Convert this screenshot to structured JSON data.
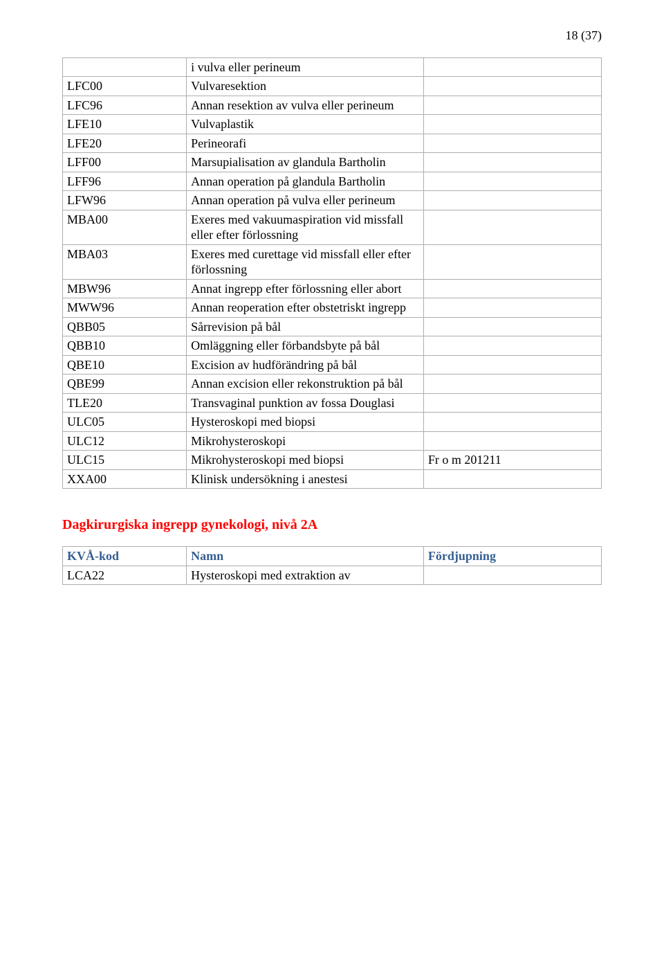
{
  "page_number_label": "18 (37)",
  "main_table": {
    "col_widths_pct": [
      23,
      44,
      33
    ],
    "border_color": "#adadad",
    "cell_padding": "2px 6px",
    "font_family": "Times New Roman",
    "font_size_pt": 14,
    "rows": [
      {
        "code": "",
        "name": "i vulva eller perineum",
        "note": ""
      },
      {
        "code": "LFC00",
        "name": "Vulvaresektion",
        "note": ""
      },
      {
        "code": "LFC96",
        "name": "Annan resektion av vulva eller perineum",
        "note": ""
      },
      {
        "code": "LFE10",
        "name": "Vulvaplastik",
        "note": ""
      },
      {
        "code": "LFE20",
        "name": "Perineorafi",
        "note": ""
      },
      {
        "code": "LFF00",
        "name": "Marsupialisation av glandula Bartholin",
        "note": ""
      },
      {
        "code": "LFF96",
        "name": "Annan operation på glandula Bartholin",
        "note": ""
      },
      {
        "code": "LFW96",
        "name": "Annan operation på vulva eller perineum",
        "note": ""
      },
      {
        "code": "MBA00",
        "name": "Exeres med vakuumaspiration vid missfall eller efter förlossning",
        "note": ""
      },
      {
        "code": "MBA03",
        "name": "Exeres med curettage vid missfall eller efter förlossning",
        "note": ""
      },
      {
        "code": "MBW96",
        "name": "Annat ingrepp efter förlossning eller abort",
        "note": ""
      },
      {
        "code": "MWW96",
        "name": "Annan reoperation efter obstetriskt ingrepp",
        "note": ""
      },
      {
        "code": "QBB05",
        "name": "Sårrevision på bål",
        "note": ""
      },
      {
        "code": "QBB10",
        "name": "Omläggning eller förbandsbyte på bål",
        "note": ""
      },
      {
        "code": "QBE10",
        "name": "Excision av hudförändring på bål",
        "note": ""
      },
      {
        "code": "QBE99",
        "name": "Annan excision eller rekonstruktion på bål",
        "note": ""
      },
      {
        "code": "TLE20",
        "name": "Transvaginal punktion av fossa Douglasi",
        "note": ""
      },
      {
        "code": "ULC05",
        "name": "Hysteroskopi med biopsi",
        "note": ""
      },
      {
        "code": "ULC12",
        "name": "Mikrohysteroskopi",
        "note": ""
      },
      {
        "code": "ULC15",
        "name": "Mikrohysteroskopi med biopsi",
        "note": "Fr o m 201211"
      },
      {
        "code": "XXA00",
        "name": "Klinisk undersökning i anestesi",
        "note": ""
      }
    ]
  },
  "section_heading": "Dagkirurgiska ingrepp gynekologi, nivå 2A",
  "section_heading_color": "#ff0000",
  "second_table": {
    "header_color": "#365f91",
    "col_widths_pct": [
      23,
      44,
      33
    ],
    "columns": [
      "KVÅ-kod",
      "Namn",
      "Fördjupning"
    ],
    "rows": [
      {
        "code": "LCA22",
        "name": "Hysteroskopi med extraktion av",
        "note": ""
      }
    ]
  }
}
